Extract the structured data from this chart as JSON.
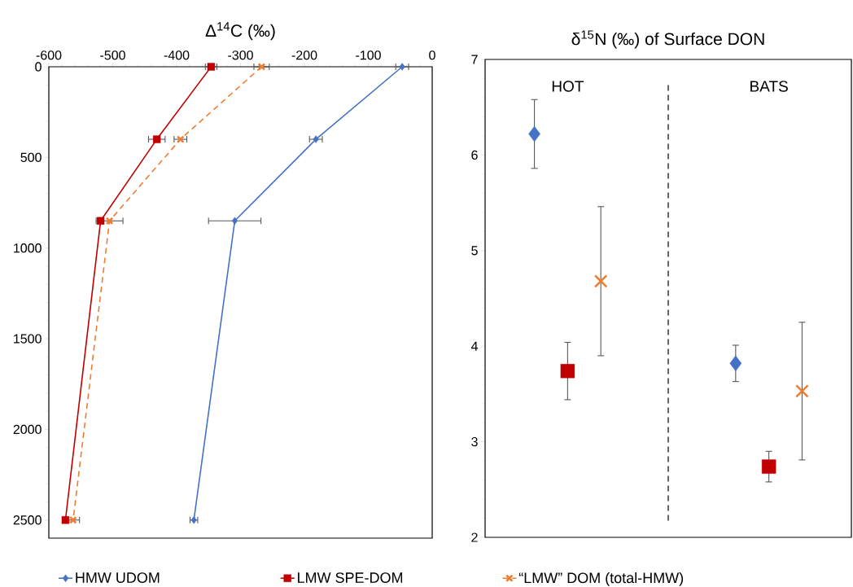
{
  "chart_data": [
    {
      "type": "line",
      "xlabel": "Δ$^{14}$C (‰)",
      "xlim": [
        -600,
        0
      ],
      "xticks": [
        -600,
        -500,
        -400,
        -300,
        -200,
        -100,
        0
      ],
      "ylim": [
        2600,
        0
      ],
      "yticks": [
        0,
        500,
        1000,
        1500,
        2000,
        2500
      ],
      "legend": "bottom",
      "series": [
        {
          "name": "HMW UDOM",
          "color": "#4472c4",
          "marker": "diamond",
          "line_style": "solid",
          "x": [
            -47,
            -182,
            -309,
            -373
          ],
          "values": [
            0,
            400,
            850,
            2500
          ],
          "xerrors": [
            10,
            10,
            41,
            6
          ]
        },
        {
          "name": "LMW SPE-DOM",
          "color": "#c00000",
          "marker": "square",
          "line_style": "solid",
          "x": [
            -346,
            -431,
            -519,
            -574
          ],
          "values": [
            0,
            400,
            850,
            2500
          ],
          "xerrors": [
            9,
            13,
            null,
            null
          ]
        },
        {
          "name": "“LMW” DOM (total-HMW)",
          "color": "#ed7d31",
          "marker": "cross",
          "line_style": "dashed",
          "x": [
            -267,
            -394,
            -505,
            -562
          ],
          "values": [
            0,
            400,
            850,
            2500
          ],
          "xerrors": [
            12,
            10,
            21,
            10
          ]
        }
      ]
    },
    {
      "type": "scatter",
      "title": "δ$^{15}$N (‰) of Surface DON",
      "categories": [
        "HOT",
        "BATS"
      ],
      "ylim": [
        2,
        7
      ],
      "yticks": [
        2,
        3,
        4,
        5,
        6,
        7
      ],
      "series": [
        {
          "color": "#4472c4",
          "marker": "diamond",
          "values": [
            6.22,
            3.82
          ],
          "errors": [
            0.36,
            0.19
          ]
        },
        {
          "color": "#c00000",
          "marker": "square",
          "values": [
            3.74,
            2.74
          ],
          "errors": [
            0.3,
            0.16
          ]
        },
        {
          "color": "#ed7d31",
          "marker": "cross",
          "values": [
            4.68,
            3.53
          ],
          "errors": [
            0.78,
            0.72
          ]
        }
      ]
    }
  ]
}
